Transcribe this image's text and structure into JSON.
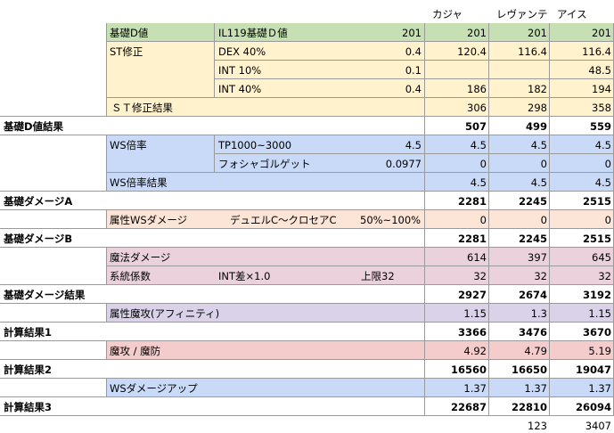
{
  "colors": {
    "green": "#c6e0b4",
    "yellow": "#fff2cc",
    "blue": "#c9daf8",
    "orange": "#fce4d6",
    "pink": "#ead1dc",
    "purple": "#d9d2e9",
    "red": "#f4cccc"
  },
  "sheet": {
    "headers": [
      "カジャ",
      "レヴァンテ",
      "アイス"
    ],
    "base_d": {
      "label": "基礎D値",
      "sub_label": "IL119基礎Ｄ値",
      "value": "201",
      "cols": [
        "201",
        "201",
        "201"
      ]
    },
    "st": {
      "label": "ST修正",
      "rows": [
        {
          "label": "DEX 40%",
          "value": "0.4",
          "cols": [
            "120.4",
            "116.4",
            "116.4"
          ]
        },
        {
          "label": "INT 10%",
          "value": "0.1",
          "cols": [
            "",
            "",
            "48.5"
          ]
        },
        {
          "label": "INT 40%",
          "value": "0.4",
          "cols": [
            "186",
            "182",
            "194"
          ]
        }
      ],
      "result_label": "ＳＴ修正結果",
      "result_cols": [
        "306",
        "298",
        "358"
      ]
    },
    "base_d_result": {
      "label": "基礎D値結果",
      "cols": [
        "507",
        "499",
        "559"
      ]
    },
    "ws": {
      "label": "WS倍率",
      "rows": [
        {
          "label": "TP1000~3000",
          "value": "4.5",
          "cols": [
            "4.5",
            "4.5",
            "4.5"
          ]
        },
        {
          "label": "フォシャゴルゲット",
          "value": "0.0977",
          "cols": [
            "0",
            "0",
            "0"
          ]
        }
      ],
      "result_label": "WS倍率結果",
      "result_cols": [
        "4.5",
        "4.5",
        "4.5"
      ]
    },
    "dmg_a": {
      "label": "基礎ダメージA",
      "cols": [
        "2281",
        "2245",
        "2515"
      ]
    },
    "elem_ws": {
      "label": "属性WSダメージ",
      "desc": "デュエルC～クロセアC",
      "range": "50%~100%",
      "cols": [
        "0",
        "0",
        "0"
      ]
    },
    "dmg_b": {
      "label": "基礎ダメージB",
      "cols": [
        "2281",
        "2245",
        "2515"
      ]
    },
    "magic": {
      "label": "魔法ダメージ",
      "cols": [
        "614",
        "397",
        "645"
      ],
      "coef_label": "系統係数",
      "coef_desc": "INT差×1.0",
      "coef_cap": "上限32",
      "coef_cols": [
        "32",
        "32",
        "32"
      ]
    },
    "dmg_result": {
      "label": "基礎ダメージ結果",
      "cols": [
        "2927",
        "2674",
        "3192"
      ]
    },
    "affinity": {
      "label": "属性魔攻(アフィニティ)",
      "cols": [
        "1.15",
        "1.3",
        "1.15"
      ]
    },
    "calc1": {
      "label": "計算結果1",
      "cols": [
        "3366",
        "3476",
        "3670"
      ]
    },
    "matk": {
      "label": "魔攻 / 魔防",
      "cols": [
        "4.92",
        "4.79",
        "5.19"
      ]
    },
    "calc2": {
      "label": "計算結果2",
      "cols": [
        "16560",
        "16650",
        "19047"
      ]
    },
    "ws_up": {
      "label": "WSダメージアップ",
      "cols": [
        "1.37",
        "1.37",
        "1.37"
      ]
    },
    "calc3": {
      "label": "計算結果3",
      "cols": [
        "22687",
        "22810",
        "26094"
      ]
    },
    "diff": [
      "123",
      "3407"
    ]
  }
}
